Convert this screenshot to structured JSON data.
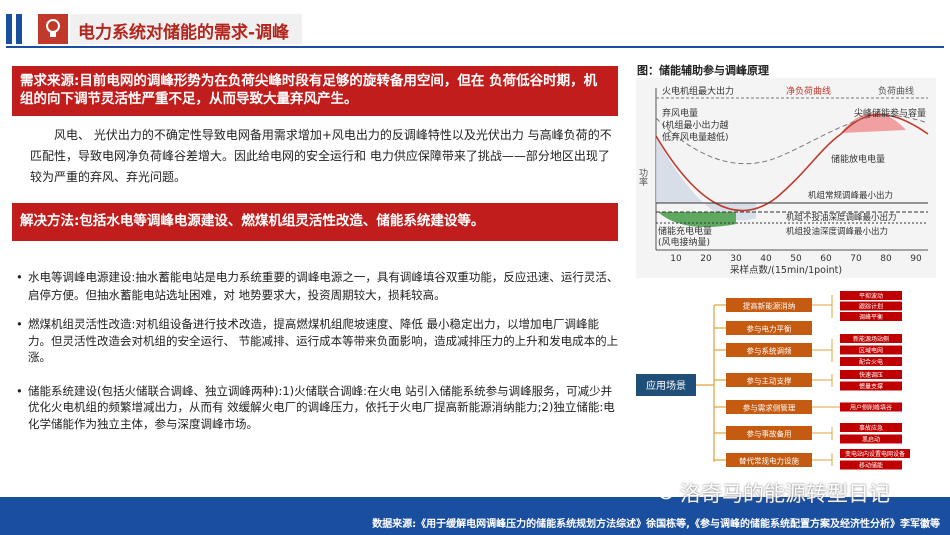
{
  "header": {
    "title": "电力系统对储能的需求-调峰"
  },
  "banner1": {
    "text": "需求来源:目前电网的调峰形势为在负荷尖峰时段有足够的旋转备用空间，但在 负荷低谷时期，机组的向下调节灵活性严重不足，从而导致大量弃风产生。"
  },
  "paragraph": "风电、 光伏出力的不确定性导致电网备用需求增加+风电出力的反调峰特性以及光伏出力 与高峰负荷的不匹配性，导致电网净负荷峰谷差增大。因此给电网的安全运行和 电力供应保障带来了挑战——部分地区出现了较为严重的弃风、弃光问题。",
  "banner2": {
    "text": "解决方法:包括水电等调峰电源建设、燃煤机组灵活性改造、储能系统建设等。"
  },
  "bullets": [
    "水电等调峰电源建设:抽水蓄能电站是电力系统重要的调峰电源之一，具有调峰填谷双重功能，反应迅速、运行灵活、启停方便。但抽水蓄能电站选址困难，对 地势要求大，投资周期较大，损耗较高。",
    "燃煤机组灵活性改造:对机组设备进行技术改造，提高燃煤机组爬坡速度、降低 最小稳定出力，以增加电厂调峰能力。但灵活性改造会对机组的安全运行、 节能减排、运行成本等带来负面影响，造成减排压力的上升和发电成本的上涨。",
    "储能系统建设(包括火储联合调峰、独立调峰两种):1)火储联合调峰:在火电 站引入储能系统参与调峰服务，可减少并优化火电机组的频繁增减出力，从而有 效缓解火电厂的调峰压力，依托于火电厂提高新能源消纳能力;2)独立储能:电 化学储能作为独立主体，参与深度调峰市场。"
  ],
  "figure": {
    "title": "图：储能辅助参与调峰原理",
    "ylabel": "功率",
    "xlabel": "采样点数/(15min/1point)",
    "x_ticks": [
      "10",
      "20",
      "30",
      "40",
      "50",
      "60",
      "70",
      "80",
      "90"
    ],
    "labels": {
      "max_output": "火电机组最大出力",
      "net_load": "净负荷曲线",
      "load": "负荷曲线",
      "curtail1": "弃风电量",
      "curtail2": "(机组最小出力越",
      "curtail3": "低弃风电量越低)",
      "peak_cap": "尖峰储能参与容量",
      "discharge": "储能放电电量",
      "charge1": "储能充电电量",
      "charge2": "(风电接纳量)",
      "min_normal": "机组常规调峰最小出力",
      "min_deep_no": "机组不投油深度调峰最小出力",
      "min_deep_oil": "机组投油深度调峰最小出力"
    }
  },
  "mindmap": {
    "root": "应用场景",
    "branches": [
      {
        "label": "提高新能源消纳",
        "leaves": [
          "平抑波动",
          "跟踪计划",
          "调峰平衡"
        ]
      },
      {
        "label": "参与电力平衡",
        "leaves": []
      },
      {
        "label": "参与系统调频",
        "leaves": [
          "新能源场站侧",
          "区域电网",
          "配合火电"
        ]
      },
      {
        "label": "参与主动支撑",
        "leaves": [
          "快速调压",
          "惯量支撑"
        ]
      },
      {
        "label": "参与需求侧管理",
        "leaves": [
          "用户侧削峰填谷"
        ]
      },
      {
        "label": "参与事故备用",
        "leaves": [
          "事故应急",
          "黑启动"
        ]
      },
      {
        "label": "替代常规电力设施",
        "leaves": [
          "变电站内设置电网设备",
          "移动储能"
        ]
      }
    ]
  },
  "footer": {
    "text": "数据来源:《用于缓解电网调峰压力的储能系统规划方法综述》徐国栋等,《参与调峰的储能系统配置方案及经济性分析》李军徽等"
  },
  "watermark": {
    "text": "洛奇马的能源转型日记"
  }
}
